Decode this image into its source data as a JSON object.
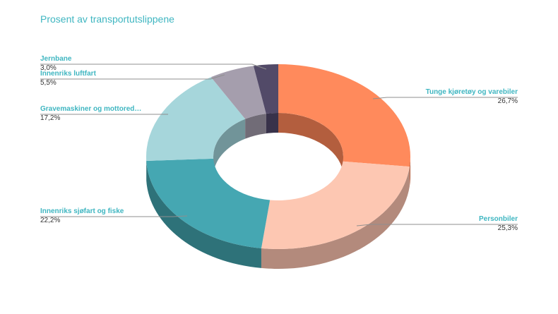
{
  "chart_data": {
    "type": "pie",
    "variant": "donut-3d",
    "title": "Prosent av transportutslippene",
    "categories": [
      "Tunge kjøretøy og varebiler",
      "Personbiler",
      "Innenriks sjøfart og fiske",
      "Gravemaskiner og mottored…",
      "Innenriks luftfart",
      "Jernbane"
    ],
    "values": [
      26.7,
      25.3,
      22.2,
      17.2,
      5.5,
      3.0
    ],
    "value_labels": [
      "26,7%",
      "25,3%",
      "22,2%",
      "17,2%",
      "5,5%",
      "3,0%"
    ],
    "colors": [
      "#ff8a5c",
      "#fdc7b2",
      "#45a7b2",
      "#a6d6db",
      "#a59ead",
      "#524a68"
    ],
    "side_colors": [
      "#b35e3e",
      "#b38a7c",
      "#2e7279",
      "#719499",
      "#716c77",
      "#38324a"
    ],
    "legend": "none",
    "label_style": "leader-lines"
  }
}
